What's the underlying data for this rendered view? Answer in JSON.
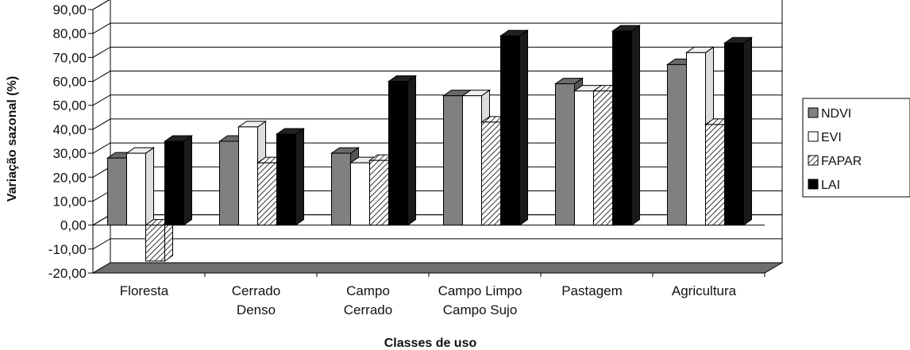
{
  "chart_data": {
    "type": "bar",
    "xlabel": "Classes de uso",
    "ylabel": "Variação sazonal (%)",
    "ylim": [
      -20,
      90
    ],
    "yticks": [
      "90,00",
      "80,00",
      "70,00",
      "60,00",
      "50,00",
      "40,00",
      "30,00",
      "20,00",
      "10,00",
      "0,00",
      "-10,00",
      "-20,00"
    ],
    "grid": true,
    "legend_position": "right",
    "categories": [
      [
        "Floresta"
      ],
      [
        "Cerrado",
        "Denso"
      ],
      [
        "Campo",
        "Cerrado"
      ],
      [
        "Campo Limpo",
        "Campo Sujo"
      ],
      [
        "Pastagem"
      ],
      [
        "Agricultura"
      ]
    ],
    "series": [
      {
        "name": "NDVI",
        "pattern": "gray",
        "color": "#808080",
        "values": [
          28,
          35,
          30,
          54,
          59,
          67
        ]
      },
      {
        "name": "EVI",
        "pattern": "white",
        "color": "#ffffff",
        "values": [
          30,
          41,
          26,
          54,
          56,
          72
        ]
      },
      {
        "name": "FAPAR",
        "pattern": "hatch",
        "color": "#ffffff",
        "values": [
          -15,
          26,
          27,
          43,
          56,
          42
        ]
      },
      {
        "name": "LAI",
        "pattern": "black",
        "color": "#000000",
        "values": [
          35,
          38,
          60,
          79,
          81,
          76
        ]
      }
    ]
  }
}
